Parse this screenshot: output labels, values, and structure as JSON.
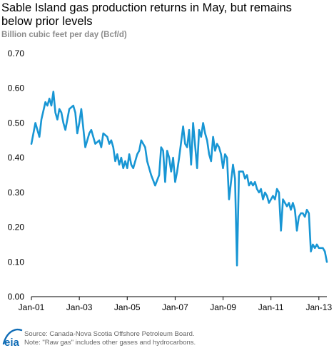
{
  "title_line1": "Sable Island gas production returns in May, but remains",
  "title_line2": "below prior levels",
  "units": "Billion cubic feet per day (Bcf/d)",
  "source": "Source:  Canada-Nova Scotia Offshore Petroleum Board.",
  "note": "Note: \"Raw gas\" includes other gases and hydrocarbons.",
  "logo_text": "eia",
  "colors": {
    "line": "#1896d4",
    "axis": "#000000",
    "tick_label": "#000000",
    "logo": "#0f6cb6"
  },
  "chart_data": {
    "type": "line",
    "title": "Sable Island gas production returns in May, but remains below prior levels",
    "ylabel": "Billion cubic feet per day (Bcf/d)",
    "xlabel": "",
    "ylim": [
      0,
      0.7
    ],
    "xlim": [
      "2001-01",
      "2013-05"
    ],
    "yticks": [
      "0.00",
      "0.10",
      "0.20",
      "0.30",
      "0.40",
      "0.50",
      "0.60",
      "0.70"
    ],
    "xticks": [
      {
        "date": "2001-01",
        "label": "Jan-01"
      },
      {
        "date": "2003-01",
        "label": "Jan-03"
      },
      {
        "date": "2005-01",
        "label": "Jan-05"
      },
      {
        "date": "2007-01",
        "label": "Jan-07"
      },
      {
        "date": "2009-01",
        "label": "Jan-09"
      },
      {
        "date": "2011-01",
        "label": "Jan-11"
      },
      {
        "date": "2013-01",
        "label": "Jan-13"
      }
    ],
    "grid": false,
    "legend": "none",
    "series": [
      {
        "x": [
          "2001-01",
          "2001-03",
          "2001-05",
          "2001-06",
          "2001-08",
          "2001-09",
          "2001-10",
          "2001-11",
          "2001-12",
          "2002-01",
          "2002-02",
          "2002-03",
          "2002-04",
          "2002-05",
          "2002-06",
          "2002-08",
          "2002-10",
          "2002-11",
          "2002-12",
          "2003-01",
          "2003-02",
          "2003-04",
          "2003-06",
          "2003-07",
          "2003-09",
          "2003-11",
          "2003-12",
          "2004-01",
          "2004-03",
          "2004-04",
          "2004-05",
          "2004-06",
          "2004-07",
          "2004-08",
          "2004-09",
          "2004-10",
          "2004-11",
          "2004-12",
          "2005-01",
          "2005-02",
          "2005-03",
          "2005-04",
          "2005-06",
          "2005-07",
          "2005-08",
          "2005-10",
          "2005-11",
          "2005-12",
          "2006-01",
          "2006-03",
          "2006-05",
          "2006-06",
          "2006-07",
          "2006-08",
          "2006-09",
          "2006-10",
          "2006-11",
          "2006-12",
          "2007-01",
          "2007-02",
          "2007-03",
          "2007-05",
          "2007-06",
          "2007-07",
          "2007-08",
          "2007-09",
          "2007-10",
          "2007-12",
          "2008-01",
          "2008-02",
          "2008-03",
          "2008-04",
          "2008-05",
          "2008-06",
          "2008-07",
          "2008-08",
          "2008-09",
          "2008-10",
          "2008-11",
          "2008-12",
          "2009-01",
          "2009-02",
          "2009-03",
          "2009-04",
          "2009-05",
          "2009-06",
          "2009-07",
          "2009-08",
          "2009-09",
          "2009-10",
          "2009-11",
          "2009-12",
          "2010-01",
          "2010-02",
          "2010-03",
          "2010-04",
          "2010-05",
          "2010-06",
          "2010-07",
          "2010-08",
          "2010-09",
          "2010-10",
          "2010-11",
          "2010-12",
          "2011-01",
          "2011-02",
          "2011-03",
          "2011-04",
          "2011-05",
          "2011-06",
          "2011-07",
          "2011-08",
          "2011-09",
          "2011-10",
          "2011-11",
          "2011-12",
          "2012-01",
          "2012-02",
          "2012-03",
          "2012-04",
          "2012-05",
          "2012-06",
          "2012-07",
          "2012-08",
          "2012-09",
          "2012-10",
          "2012-11",
          "2012-12",
          "2013-01",
          "2013-02",
          "2013-03",
          "2013-04",
          "2013-05"
        ],
        "values": [
          0.44,
          0.5,
          0.46,
          0.51,
          0.56,
          0.55,
          0.57,
          0.55,
          0.59,
          0.53,
          0.51,
          0.54,
          0.53,
          0.5,
          0.48,
          0.54,
          0.55,
          0.53,
          0.47,
          0.5,
          0.54,
          0.43,
          0.47,
          0.48,
          0.44,
          0.45,
          0.43,
          0.47,
          0.46,
          0.44,
          0.45,
          0.43,
          0.39,
          0.41,
          0.38,
          0.4,
          0.37,
          0.39,
          0.37,
          0.41,
          0.38,
          0.37,
          0.41,
          0.42,
          0.45,
          0.43,
          0.39,
          0.37,
          0.35,
          0.32,
          0.35,
          0.43,
          0.42,
          0.33,
          0.42,
          0.4,
          0.36,
          0.4,
          0.33,
          0.36,
          0.4,
          0.49,
          0.44,
          0.43,
          0.48,
          0.38,
          0.5,
          0.37,
          0.48,
          0.46,
          0.5,
          0.47,
          0.45,
          0.41,
          0.39,
          0.46,
          0.42,
          0.44,
          0.43,
          0.41,
          0.37,
          0.41,
          0.4,
          0.28,
          0.33,
          0.38,
          0.34,
          0.09,
          0.36,
          0.36,
          0.36,
          0.34,
          0.35,
          0.32,
          0.33,
          0.32,
          0.33,
          0.31,
          0.3,
          0.31,
          0.28,
          0.3,
          0.29,
          0.27,
          0.28,
          0.29,
          0.28,
          0.31,
          0.3,
          0.19,
          0.28,
          0.27,
          0.26,
          0.27,
          0.25,
          0.27,
          0.25,
          0.19,
          0.23,
          0.24,
          0.24,
          0.23,
          0.25,
          0.24,
          0.13,
          0.15,
          0.14,
          0.15,
          0.14,
          0.14,
          0.14,
          0.13,
          0.1
        ]
      }
    ]
  }
}
